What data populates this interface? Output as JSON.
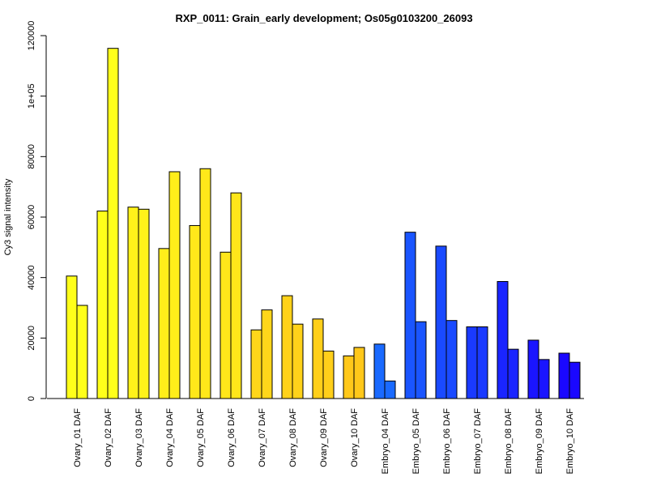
{
  "chart_data": {
    "type": "bar",
    "title": "RXP_0011: Grain_early development; Os05g0103200_26093",
    "ylabel": "Cy3 signal intensity",
    "xlabel": "",
    "ylim": [
      0,
      120000
    ],
    "yticks": [
      0,
      20000,
      40000,
      60000,
      80000,
      100000,
      120000
    ],
    "ytick_labels": [
      "0",
      "20000",
      "40000",
      "60000",
      "80000",
      "1e+05",
      "120000"
    ],
    "categories": [
      "Ovary_01 DAF",
      "Ovary_02 DAF",
      "Ovary_03 DAF",
      "Ovary_04 DAF",
      "Ovary_05 DAF",
      "Ovary_06 DAF",
      "Ovary_07 DAF",
      "Ovary_08 DAF",
      "Ovary_09 DAF",
      "Ovary_10 DAF",
      "Embryo_04 DAF",
      "Embryo_05 DAF",
      "Embryo_06 DAF",
      "Embryo_07 DAF",
      "Embryo_08 DAF",
      "Embryo_09 DAF",
      "Embryo_10 DAF"
    ],
    "series": [
      {
        "values": [
          40500,
          62000,
          63300,
          49600,
          57200,
          48400,
          22700,
          34000,
          26300,
          14100,
          18000,
          55000,
          50400,
          23700,
          38700,
          19300,
          15000
        ]
      },
      {
        "values": [
          30800,
          115800,
          62600,
          75000,
          76000,
          68000,
          29300,
          24600,
          15700,
          16900,
          5800,
          25400,
          25800,
          23700,
          16300,
          12900,
          12000
        ]
      }
    ],
    "colors": [
      "#ffff1a",
      "#ffff1a",
      "#fff21a",
      "#ffee1a",
      "#ffe81a",
      "#ffe61a",
      "#ffd61a",
      "#ffd21a",
      "#ffcf1a",
      "#ffc81a",
      "#1a6aff",
      "#1a55ff",
      "#1a4aff",
      "#1a3aff",
      "#1a25ff",
      "#1a15ff",
      "#1a08ff"
    ],
    "grid": false,
    "legend": "none"
  }
}
